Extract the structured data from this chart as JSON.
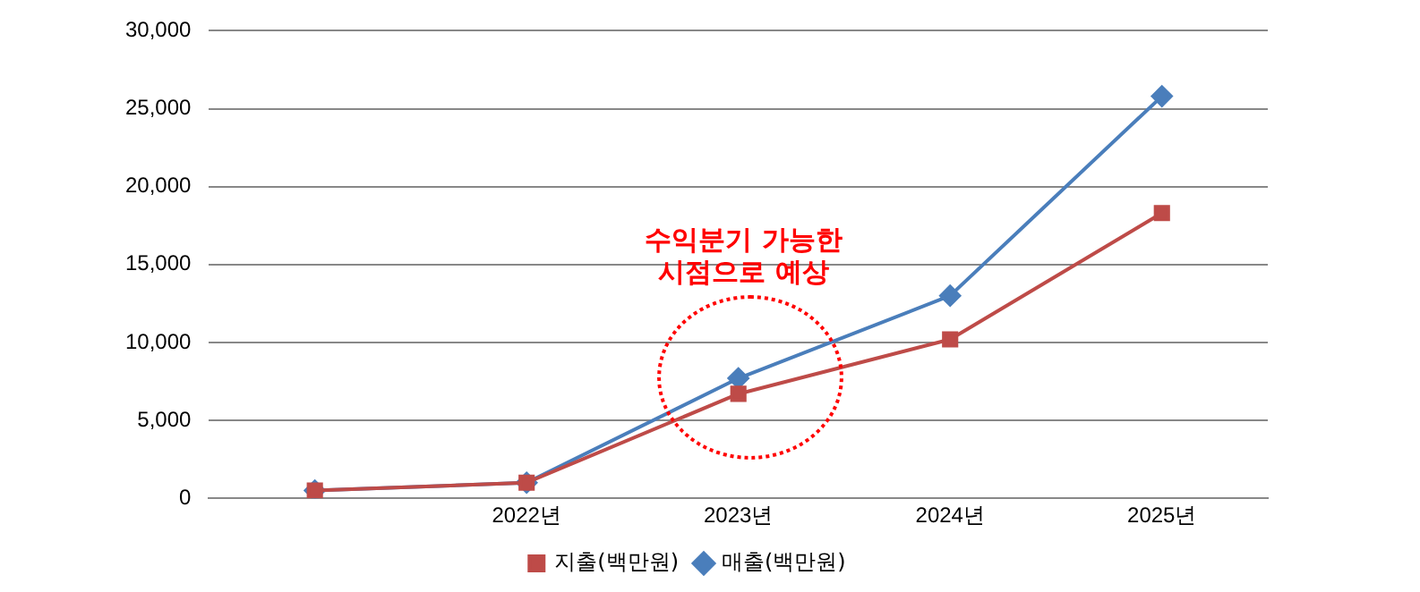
{
  "chart_data": {
    "type": "line",
    "categories": [
      null,
      "2022년",
      "2023년",
      "2024년",
      "2025년"
    ],
    "series": [
      {
        "name": "매출(백만원)",
        "color": "#4a7ebb",
        "marker": "diamond",
        "values": [
          500,
          1000,
          7700,
          13000,
          25800
        ]
      },
      {
        "name": "지출(백만원)",
        "color": "#be4b48",
        "marker": "square",
        "values": [
          500,
          1000,
          6700,
          10200,
          18300
        ]
      }
    ],
    "ylim": [
      0,
      30000
    ],
    "yticks": [
      {
        "value": 0,
        "label": "0"
      },
      {
        "value": 5000,
        "label": "5,000"
      },
      {
        "value": 10000,
        "label": "10,000"
      },
      {
        "value": 15000,
        "label": "15,000"
      },
      {
        "value": 20000,
        "label": "20,000"
      },
      {
        "value": 25000,
        "label": "25,000"
      },
      {
        "value": 30000,
        "label": "30,000"
      }
    ],
    "grid": "y",
    "legend": "bottom",
    "line_style": "solid",
    "annotations": [
      "수익분기 가능한\n시점으로 예상"
    ]
  }
}
